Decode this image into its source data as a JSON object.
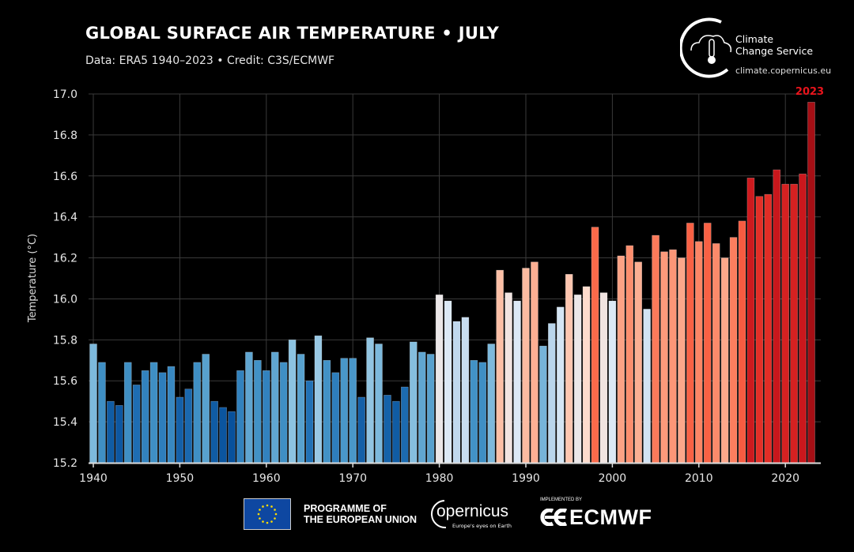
{
  "header": {
    "title": "GLOBAL SURFACE AIR TEMPERATURE • JULY",
    "subtitle": "Data: ERA5 1940–2023 • Credit: C3S/ECMWF"
  },
  "logo": {
    "name_line1": "Climate",
    "name_line2": "Change Service",
    "url": "climate.copernicus.eu"
  },
  "footer": {
    "eu_line1": "PROGRAMME OF",
    "eu_line2": "THE EUROPEAN UNION",
    "copernicus": "opernicus",
    "copernicus_tagline": "Europe's eyes on Earth",
    "implemented_by": "IMPLEMENTED BY",
    "ecmwf": "ECMWF"
  },
  "chart_data": {
    "type": "bar",
    "title": "GLOBAL SURFACE AIR TEMPERATURE • JULY",
    "xlabel": "",
    "ylabel": "Temperature (°C)",
    "ylim": [
      15.2,
      17.0
    ],
    "yticks": [
      "15.2",
      "15.4",
      "15.6",
      "15.8",
      "16.0",
      "16.2",
      "16.4",
      "16.6",
      "16.8",
      "17.0"
    ],
    "xticks": [
      "1940",
      "1950",
      "1960",
      "1970",
      "1980",
      "1990",
      "2000",
      "2010",
      "2020"
    ],
    "grid": true,
    "highlight": {
      "label": "2023",
      "color": "#e8141c"
    },
    "colormap": "diverging blue-white-red by value",
    "x": [
      1940,
      1941,
      1942,
      1943,
      1944,
      1945,
      1946,
      1947,
      1948,
      1949,
      1950,
      1951,
      1952,
      1953,
      1954,
      1955,
      1956,
      1957,
      1958,
      1959,
      1960,
      1961,
      1962,
      1963,
      1964,
      1965,
      1966,
      1967,
      1968,
      1969,
      1970,
      1971,
      1972,
      1973,
      1974,
      1975,
      1976,
      1977,
      1978,
      1979,
      1980,
      1981,
      1982,
      1983,
      1984,
      1985,
      1986,
      1987,
      1988,
      1989,
      1990,
      1991,
      1992,
      1993,
      1994,
      1995,
      1996,
      1997,
      1998,
      1999,
      2000,
      2001,
      2002,
      2003,
      2004,
      2005,
      2006,
      2007,
      2008,
      2009,
      2010,
      2011,
      2012,
      2013,
      2014,
      2015,
      2016,
      2017,
      2018,
      2019,
      2020,
      2021,
      2022,
      2023
    ],
    "values": [
      15.78,
      15.69,
      15.5,
      15.48,
      15.69,
      15.58,
      15.65,
      15.69,
      15.64,
      15.67,
      15.52,
      15.56,
      15.69,
      15.73,
      15.5,
      15.47,
      15.45,
      15.65,
      15.74,
      15.7,
      15.65,
      15.74,
      15.69,
      15.8,
      15.73,
      15.6,
      15.82,
      15.7,
      15.64,
      15.71,
      15.71,
      15.52,
      15.81,
      15.78,
      15.53,
      15.5,
      15.57,
      15.79,
      15.74,
      15.73,
      16.02,
      15.99,
      15.89,
      15.91,
      15.7,
      15.69,
      15.78,
      16.14,
      16.03,
      15.99,
      16.15,
      16.18,
      15.77,
      15.88,
      15.96,
      16.12,
      16.02,
      16.06,
      16.35,
      16.03,
      15.99,
      16.21,
      16.26,
      16.18,
      15.95,
      16.31,
      16.23,
      16.24,
      16.2,
      16.37,
      16.28,
      16.37,
      16.27,
      16.2,
      16.3,
      16.38,
      16.59,
      16.5,
      16.51,
      16.63,
      16.56,
      16.56,
      16.61,
      16.96
    ]
  }
}
